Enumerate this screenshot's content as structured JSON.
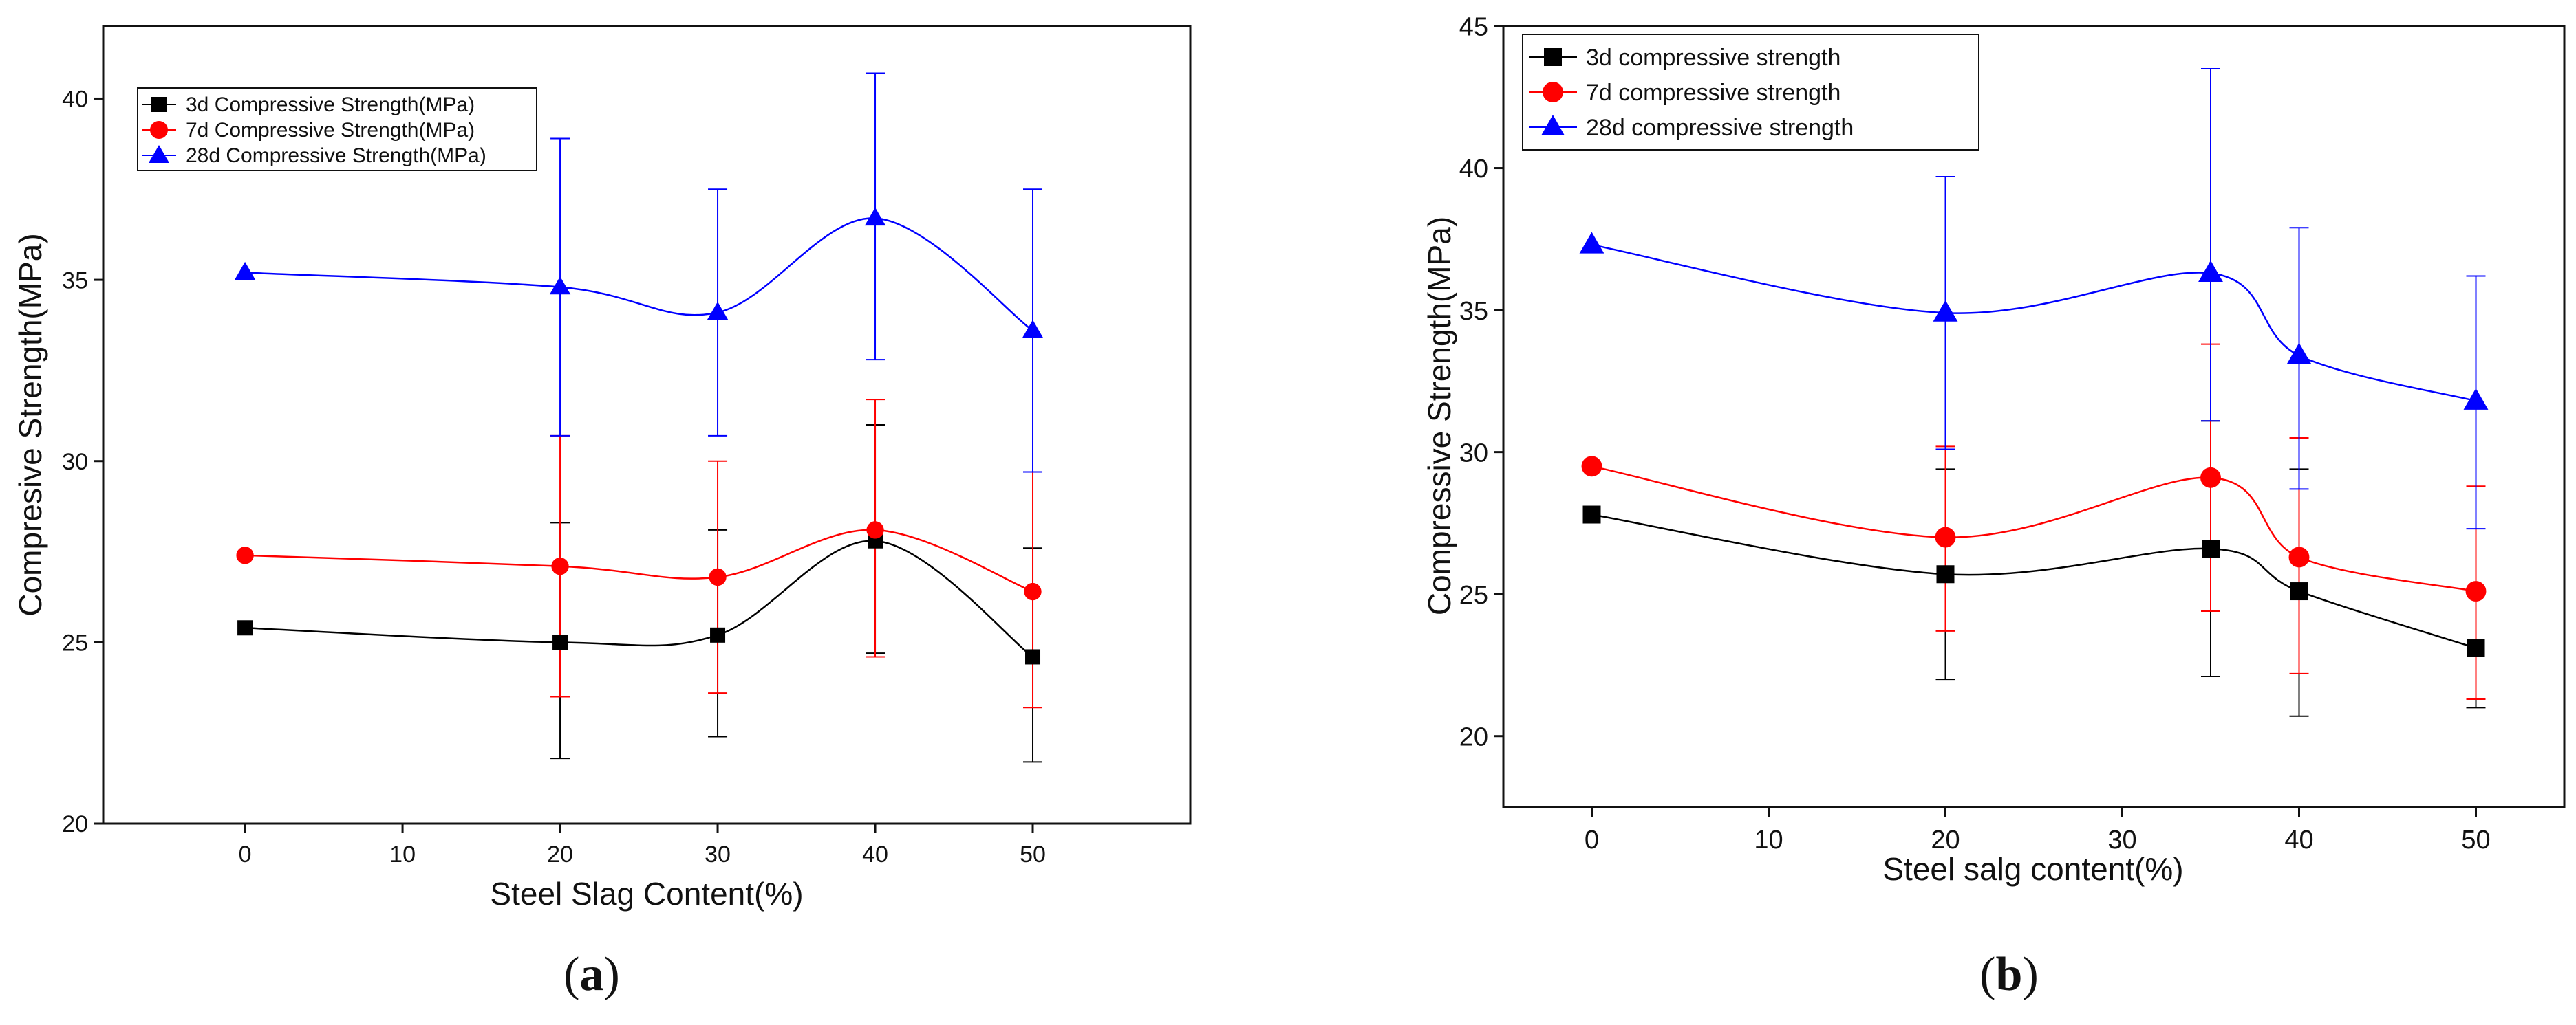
{
  "chart_data": [
    {
      "id": "a",
      "type": "line",
      "caption": "a",
      "xlabel": "Steel Slag Content(%)",
      "ylabel": "Compresive Strength(MPa)",
      "xlim": [
        -9,
        60
      ],
      "ylim": [
        20,
        42
      ],
      "xticks": [
        0,
        10,
        20,
        30,
        40,
        50
      ],
      "yticks": [
        20,
        25,
        30,
        35,
        40
      ],
      "legend_position": "top-left",
      "x": [
        0,
        20,
        30,
        40,
        50
      ],
      "series": [
        {
          "name": "3d Compressive Strength(MPa)",
          "color": "#000000",
          "marker": "square",
          "values": [
            25.4,
            25.0,
            25.2,
            27.8,
            24.6
          ],
          "error_low": [
            null,
            21.8,
            22.4,
            24.7,
            21.7
          ],
          "error_high": [
            null,
            28.3,
            28.1,
            31.0,
            27.6
          ]
        },
        {
          "name": "7d Compressive Strength(MPa)",
          "color": "#ff0000",
          "marker": "circle",
          "values": [
            27.4,
            27.1,
            26.8,
            28.1,
            26.4
          ],
          "error_low": [
            null,
            23.5,
            23.6,
            24.6,
            23.2
          ],
          "error_high": [
            null,
            30.7,
            30.0,
            31.7,
            29.7
          ]
        },
        {
          "name": "28d Compressive Strength(MPa)",
          "color": "#0000ff",
          "marker": "triangle",
          "values": [
            35.2,
            34.8,
            34.1,
            36.7,
            33.6
          ],
          "error_low": [
            null,
            30.7,
            30.7,
            32.8,
            29.7
          ],
          "error_high": [
            null,
            38.9,
            37.5,
            40.7,
            37.5
          ]
        }
      ]
    },
    {
      "id": "b",
      "type": "line",
      "caption": "b",
      "xlabel": "Steel salg content(%)",
      "ylabel": "Compressive Strength(MPa)",
      "xlim": [
        -5,
        55
      ],
      "ylim": [
        17.5,
        45
      ],
      "xticks": [
        0,
        10,
        20,
        30,
        40,
        50
      ],
      "yticks": [
        20,
        25,
        30,
        35,
        40,
        45
      ],
      "legend_position": "top-left",
      "x": [
        0,
        20,
        35,
        40,
        50
      ],
      "series": [
        {
          "name": "3d compressive strength",
          "color": "#000000",
          "marker": "square",
          "values": [
            27.8,
            25.7,
            26.6,
            25.1,
            23.1
          ],
          "error_low": [
            null,
            22.0,
            22.1,
            20.7,
            21.0
          ],
          "error_high": [
            null,
            29.4,
            31.1,
            29.4,
            25.1
          ]
        },
        {
          "name": "7d compressive strength",
          "color": "#ff0000",
          "marker": "circle",
          "values": [
            29.5,
            27.0,
            29.1,
            26.3,
            25.1
          ],
          "error_low": [
            null,
            23.7,
            24.4,
            22.2,
            21.3
          ],
          "error_high": [
            null,
            30.2,
            33.8,
            30.5,
            28.8
          ]
        },
        {
          "name": "28d compressive strength",
          "color": "#0000ff",
          "marker": "triangle",
          "values": [
            37.3,
            34.9,
            36.3,
            33.4,
            31.8
          ],
          "error_low": [
            null,
            30.1,
            31.1,
            28.7,
            27.3
          ],
          "error_high": [
            null,
            39.7,
            43.5,
            37.9,
            36.2
          ]
        }
      ]
    }
  ]
}
